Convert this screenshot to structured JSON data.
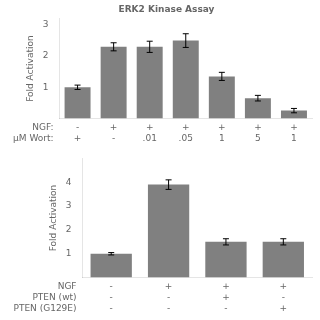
{
  "chart_data": [
    {
      "type": "bar",
      "title": "ERK2 Kinase Assay",
      "categories": [
        [
          "-",
          "+"
        ],
        [
          "+",
          "-"
        ],
        [
          "+",
          ".01"
        ],
        [
          "+",
          ".05"
        ],
        [
          "+",
          "1"
        ],
        [
          "+",
          "5"
        ],
        [
          "+",
          "1"
        ]
      ],
      "annotations": [
        "NGF:",
        "μM Wort:"
      ],
      "values": [
        1.0,
        2.3,
        2.3,
        2.5,
        1.35,
        0.65,
        0.25
      ],
      "errors": [
        0.07,
        0.13,
        0.18,
        0.22,
        0.13,
        0.09,
        0.07
      ],
      "color": "#808080",
      "ylabel": "Fold Activation",
      "ylim": [
        0,
        3.2
      ],
      "yticks": [
        1,
        2,
        3
      ],
      "grid": false
    },
    {
      "type": "bar",
      "categories": [
        [
          "-",
          "-",
          "-"
        ],
        [
          "+",
          "-",
          "-"
        ],
        [
          "+",
          "+",
          "-"
        ],
        [
          "+",
          "-",
          "+"
        ]
      ],
      "annotations": [
        "NGF",
        "PTEN (wt)",
        "PTEN (G129E)"
      ],
      "values": [
        1.0,
        3.9,
        1.5,
        1.5
      ],
      "errors": [
        0.05,
        0.2,
        0.13,
        0.13
      ],
      "color": "#808080",
      "ylabel": "Fold Activation",
      "ylim": [
        0,
        5.0
      ],
      "yticks": [
        1,
        2,
        3,
        4
      ],
      "grid": false
    }
  ]
}
